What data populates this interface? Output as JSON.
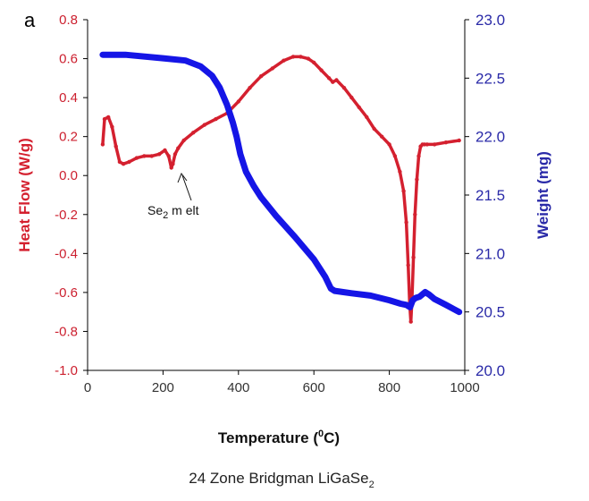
{
  "chart_data": {
    "type": "line",
    "panel_label": "a",
    "xlabel_main": "Temperature (",
    "xlabel_sup": "0",
    "xlabel_end": "C)",
    "y_left_label": "Heat Flow  (W/g)",
    "y_right_label": "Weight (mg)",
    "caption_main": "24 Zone Bridgman LiGaSe",
    "caption_sub": "2",
    "annotation": {
      "text_main": "Se",
      "text_sub": "2",
      "text_end": " m elt",
      "x": 225,
      "y": 0.03
    },
    "xlim": [
      0,
      1000
    ],
    "ylim_left": [
      -1.0,
      0.8
    ],
    "ylim_right": [
      20.0,
      23.0
    ],
    "x_ticks": [
      "0",
      "200",
      "400",
      "600",
      "800",
      "1000"
    ],
    "y_left_ticks": [
      "0.8",
      "0.6",
      "0.4",
      "0.2",
      "0.0",
      "-0.2",
      "-0.4",
      "-0.6",
      "-0.8",
      "-1.0"
    ],
    "y_right_ticks": [
      "23.0",
      "22.5",
      "22.0",
      "21.5",
      "21.0",
      "20.5",
      "20.0"
    ],
    "series": [
      {
        "axis": "left",
        "color": "#d4202f",
        "x": [
          40,
          45,
          55,
          65,
          75,
          85,
          95,
          110,
          130,
          150,
          170,
          190,
          205,
          215,
          222,
          226,
          232,
          240,
          255,
          280,
          310,
          340,
          370,
          400,
          430,
          460,
          490,
          520,
          545,
          565,
          585,
          600,
          620,
          640,
          650,
          660,
          680,
          700,
          720,
          740,
          760,
          780,
          800,
          815,
          828,
          838,
          845,
          850,
          854,
          857,
          860,
          864,
          868,
          873,
          878,
          883,
          888,
          893,
          900,
          920,
          950,
          985
        ],
        "y": [
          0.16,
          0.29,
          0.3,
          0.25,
          0.15,
          0.07,
          0.06,
          0.07,
          0.09,
          0.1,
          0.1,
          0.11,
          0.13,
          0.1,
          0.04,
          0.06,
          0.11,
          0.14,
          0.18,
          0.22,
          0.26,
          0.29,
          0.32,
          0.38,
          0.45,
          0.51,
          0.55,
          0.59,
          0.61,
          0.61,
          0.6,
          0.58,
          0.54,
          0.5,
          0.48,
          0.49,
          0.45,
          0.4,
          0.35,
          0.3,
          0.24,
          0.2,
          0.16,
          0.1,
          0.02,
          -0.08,
          -0.24,
          -0.46,
          -0.66,
          -0.75,
          -0.64,
          -0.42,
          -0.2,
          -0.02,
          0.1,
          0.15,
          0.16,
          0.16,
          0.16,
          0.16,
          0.17,
          0.18
        ]
      },
      {
        "axis": "right",
        "color": "#1515e6",
        "x": [
          40,
          100,
          200,
          260,
          300,
          330,
          350,
          370,
          385,
          395,
          405,
          420,
          440,
          460,
          500,
          550,
          600,
          630,
          645,
          655,
          700,
          750,
          800,
          830,
          845,
          855,
          862,
          870,
          880,
          895,
          905,
          920,
          950,
          985
        ],
        "y": [
          22.7,
          22.7,
          22.67,
          22.65,
          22.6,
          22.52,
          22.42,
          22.27,
          22.12,
          22.0,
          21.85,
          21.7,
          21.58,
          21.48,
          21.32,
          21.14,
          20.95,
          20.8,
          20.7,
          20.68,
          20.66,
          20.64,
          20.6,
          20.57,
          20.56,
          20.54,
          20.6,
          20.62,
          20.63,
          20.67,
          20.65,
          20.61,
          20.56,
          20.5
        ]
      }
    ]
  }
}
